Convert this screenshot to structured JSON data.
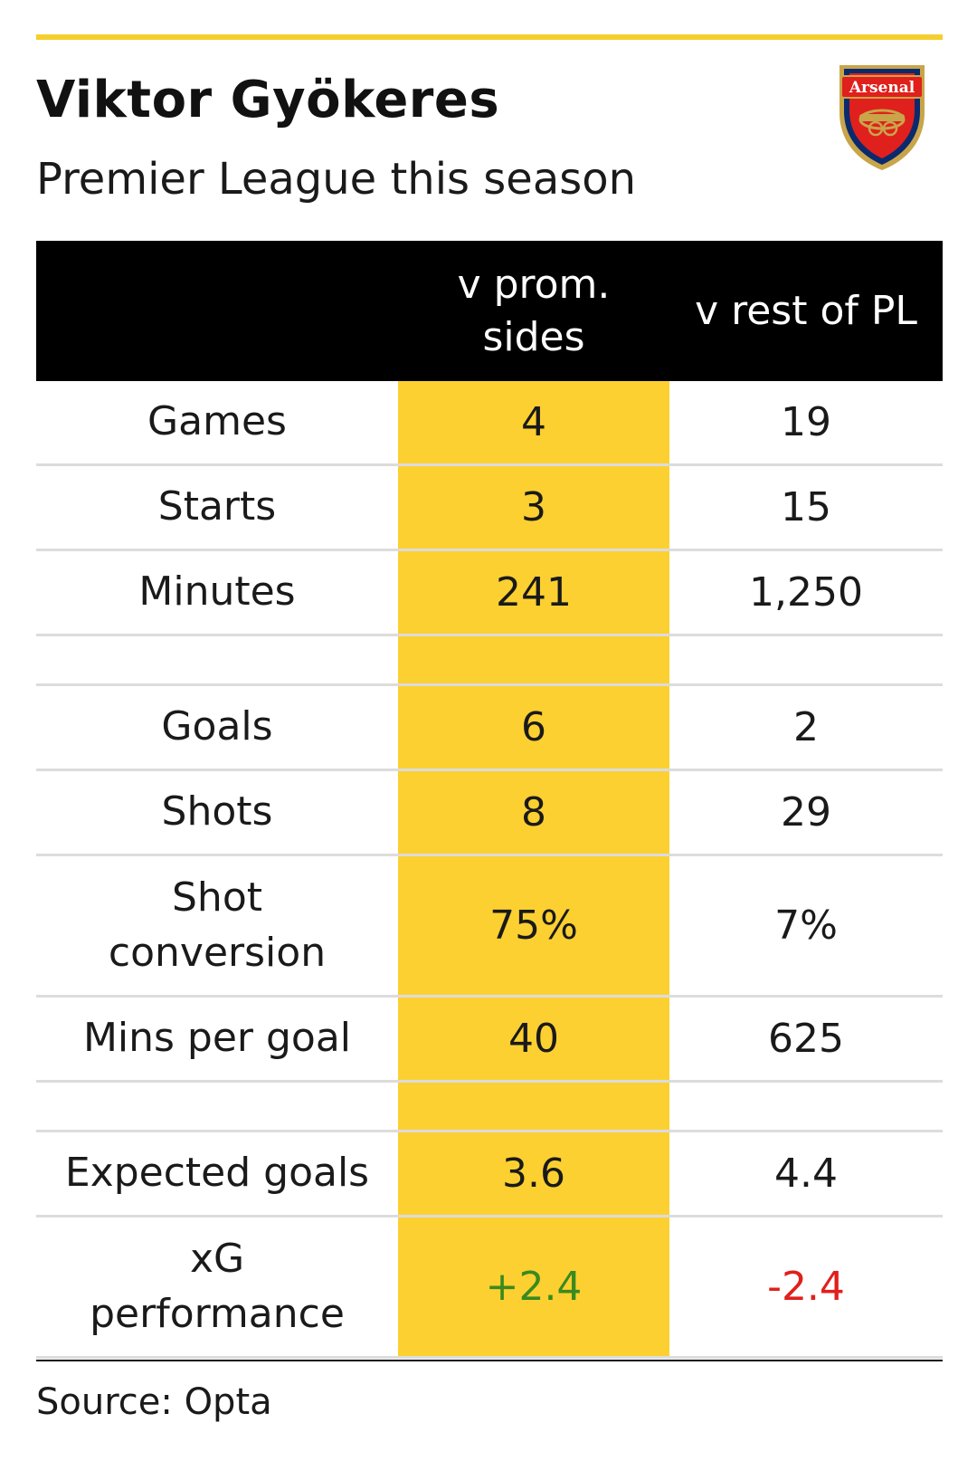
{
  "header": {
    "title": "Viktor Gyökeres",
    "subtitle": "Premier League this season",
    "crest_text": "Arsenal"
  },
  "colors": {
    "accent_yellow": "#fcd031",
    "positive": "#3a8a1e",
    "negative": "#e0201c",
    "header_bg": "#000000"
  },
  "chart_data": {
    "type": "table",
    "title": "Viktor Gyökeres",
    "subtitle": "Premier League this season",
    "columns": [
      "",
      "v prom. sides",
      "v rest of PL"
    ],
    "rows": [
      {
        "label": "Games",
        "v_prom": "4",
        "v_rest": "19"
      },
      {
        "label": "Starts",
        "v_prom": "3",
        "v_rest": "15"
      },
      {
        "label": "Minutes",
        "v_prom": "241",
        "v_rest": "1,250"
      },
      {
        "label": "Goals",
        "v_prom": "6",
        "v_rest": "2"
      },
      {
        "label": "Shots",
        "v_prom": "8",
        "v_rest": "29"
      },
      {
        "label": "Shot conversion",
        "v_prom": "75%",
        "v_rest": "7%"
      },
      {
        "label": "Mins per goal",
        "v_prom": "40",
        "v_rest": "625"
      },
      {
        "label": "Expected goals",
        "v_prom": "3.6",
        "v_rest": "4.4"
      },
      {
        "label": "xG performance",
        "v_prom": "+2.4",
        "v_rest": "-2.4"
      }
    ],
    "source": "Source: Opta"
  }
}
